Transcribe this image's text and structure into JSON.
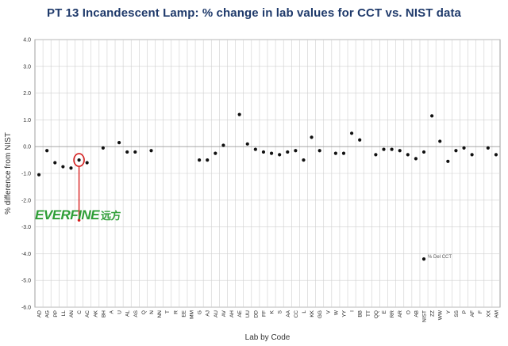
{
  "chart_data": {
    "type": "scatter",
    "title": "PT 13 Incandescent Lamp: % change in lab values for CCT vs. NIST data",
    "xlabel": "Lab by Code",
    "ylabel": "% difference from NIST",
    "ylim": [
      -6.0,
      4.0
    ],
    "yticks": [
      "4.0",
      "3.0",
      "2.0",
      "1.0",
      "0.0",
      "-1.0",
      "-2.0",
      "-3.0",
      "-4.0",
      "-5.0",
      "-6.0"
    ],
    "grid": true,
    "categories": [
      "AD",
      "AG",
      "PP",
      "LL",
      "AN",
      "C",
      "AC",
      "AK",
      "BH",
      "A",
      "U",
      "AL",
      "AS",
      "Q",
      "N",
      "NN",
      "T",
      "R",
      "EE",
      "MM",
      "G",
      "AJ",
      "AU",
      "AV",
      "AH",
      "AE",
      "UU",
      "DD",
      "FF",
      "K",
      "S",
      "AA",
      "CC",
      "L",
      "KK",
      "GG",
      "V",
      "W",
      "YY",
      "I",
      "BB",
      "TT",
      "QQ",
      "E",
      "RR",
      "AR",
      "O",
      "AB",
      "NIST",
      "ZZ",
      "WW",
      "Y",
      "SS",
      "P",
      "AF",
      "F",
      "XX",
      "AM"
    ],
    "series": [
      {
        "name": "% Del CCT",
        "color": "#111111",
        "points": [
          {
            "x": "AD",
            "y": -1.05
          },
          {
            "x": "AG",
            "y": -0.15
          },
          {
            "x": "PP",
            "y": -0.6
          },
          {
            "x": "LL",
            "y": -0.75
          },
          {
            "x": "AN",
            "y": -0.8
          },
          {
            "x": "C",
            "y": -0.5
          },
          {
            "x": "AC",
            "y": -0.6
          },
          {
            "x": "BH",
            "y": -0.05
          },
          {
            "x": "U",
            "y": 0.15
          },
          {
            "x": "AL",
            "y": -0.2
          },
          {
            "x": "AS",
            "y": -0.2
          },
          {
            "x": "N",
            "y": -0.15
          },
          {
            "x": "G",
            "y": -0.5
          },
          {
            "x": "AJ",
            "y": -0.5
          },
          {
            "x": "AU",
            "y": -0.25
          },
          {
            "x": "AV",
            "y": 0.05
          },
          {
            "x": "AE",
            "y": 1.2
          },
          {
            "x": "UU",
            "y": 0.1
          },
          {
            "x": "DD",
            "y": -0.1
          },
          {
            "x": "FF",
            "y": -0.2
          },
          {
            "x": "K",
            "y": -0.25
          },
          {
            "x": "S",
            "y": -0.3
          },
          {
            "x": "AA",
            "y": -0.2
          },
          {
            "x": "CC",
            "y": -0.15
          },
          {
            "x": "L",
            "y": -0.5
          },
          {
            "x": "KK",
            "y": 0.35
          },
          {
            "x": "GG",
            "y": -0.15
          },
          {
            "x": "W",
            "y": -0.25
          },
          {
            "x": "YY",
            "y": -0.25
          },
          {
            "x": "I",
            "y": 0.5
          },
          {
            "x": "BB",
            "y": 0.25
          },
          {
            "x": "QQ",
            "y": -0.3
          },
          {
            "x": "E",
            "y": -0.1
          },
          {
            "x": "RR",
            "y": -0.1
          },
          {
            "x": "AR",
            "y": -0.15
          },
          {
            "x": "O",
            "y": -0.3
          },
          {
            "x": "AB",
            "y": -0.45
          },
          {
            "x": "NIST",
            "y": -0.2
          },
          {
            "x": "ZZ",
            "y": 1.15
          },
          {
            "x": "WW",
            "y": 0.2
          },
          {
            "x": "Y",
            "y": -0.55
          },
          {
            "x": "SS",
            "y": -0.15
          },
          {
            "x": "P",
            "y": -0.05
          },
          {
            "x": "AF",
            "y": -0.3
          },
          {
            "x": "XX",
            "y": -0.05
          },
          {
            "x": "AM",
            "y": -0.3
          }
        ]
      }
    ],
    "legend": {
      "label": "% Del CCT",
      "placement": "inside-bottom-right"
    },
    "annotation": {
      "highlight_category": "C",
      "y": -0.5,
      "color": "#d62020"
    }
  },
  "logo": {
    "text": "EVERFINE",
    "cn": "远方",
    "color": "#2e9e36"
  }
}
